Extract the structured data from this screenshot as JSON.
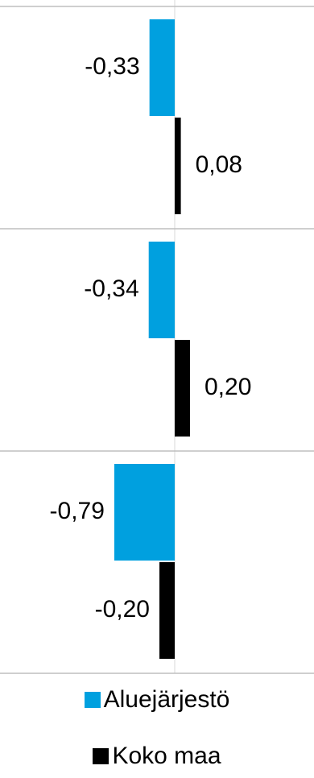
{
  "chart_data": {
    "type": "bar",
    "orientation": "horizontal",
    "categories": [
      "",
      "",
      ""
    ],
    "series": [
      {
        "name": "Aluejärjestö",
        "values": [
          -0.33,
          -0.34,
          -0.79
        ],
        "labels": [
          "-0,33",
          "-0,34",
          "-0,79"
        ],
        "color": "#00A0DF"
      },
      {
        "name": "Koko maa",
        "values": [
          0.08,
          0.2,
          -0.2
        ],
        "labels": [
          "0,08",
          "0,20",
          "-0,20"
        ],
        "color": "#000000"
      }
    ],
    "title": "",
    "xlabel": "",
    "ylabel": "",
    "grid": true,
    "legend_position": "bottom"
  }
}
